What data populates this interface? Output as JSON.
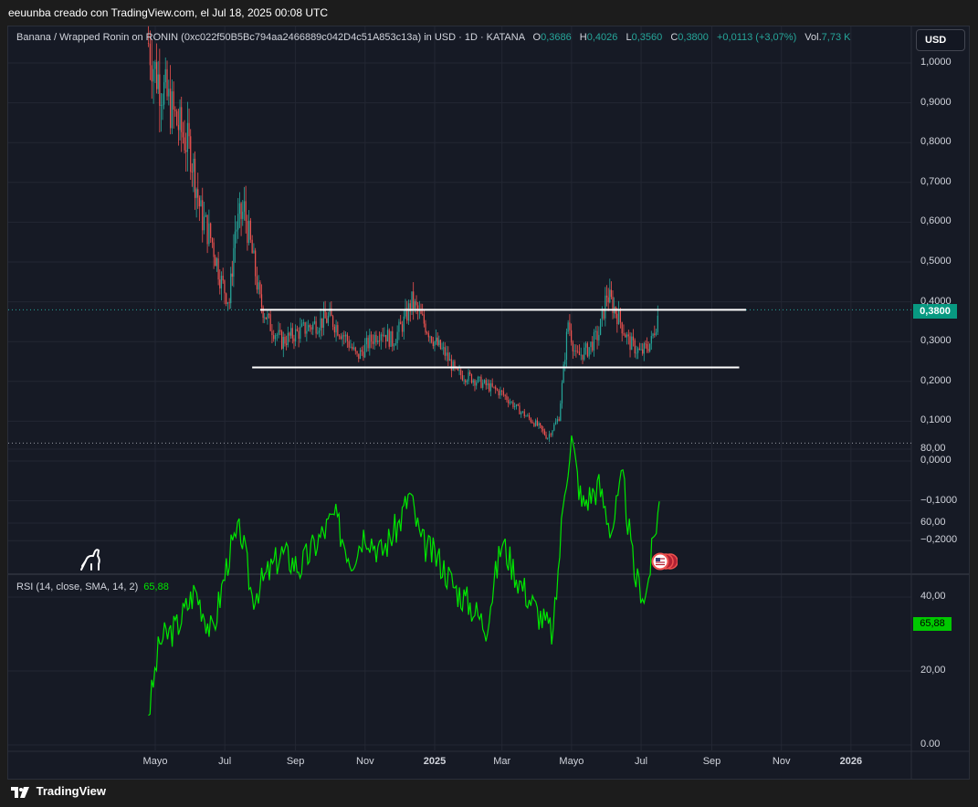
{
  "header": {
    "author_line": "eeuunba creado con TradingView.com, el Jul 18, 2025 00:08 UTC"
  },
  "legend": {
    "symbol": "Banana / Wrapped Ronin on RONIN (0xc022f50B5Bc794aa2466889c042D4c51A853c13a) in USD · 1D · KATANA",
    "o_label": "O",
    "o": "0,3686",
    "h_label": "H",
    "h": "0,4026",
    "l_label": "L",
    "l": "0,3560",
    "c_label": "C",
    "c": "0,3800",
    "change": "+0,0113 (+3,07%)",
    "vol_label": "Vol.",
    "vol": "7,73 K"
  },
  "currency_button": "USD",
  "price_axis": {
    "labels": [
      "1,0000",
      "0,9000",
      "0,8000",
      "0,7000",
      "0,6000",
      "0,5000",
      "0,4000",
      "0,3000",
      "0,2000",
      "0,1000",
      "0,0000",
      "−0,1000",
      "−0,2000"
    ],
    "values": [
      1.0,
      0.9,
      0.8,
      0.7,
      0.6,
      0.5,
      0.4,
      0.3,
      0.2,
      0.1,
      0.0,
      -0.1,
      -0.2
    ],
    "last_price_label": "0,3800"
  },
  "rsi": {
    "title": "RSI (14, close, SMA, 14, 2)",
    "value": "65,88",
    "axis_labels": [
      "80,00",
      "60,00",
      "40,00",
      "20,00",
      "0.00"
    ],
    "axis_values": [
      80,
      60,
      40,
      20,
      0
    ]
  },
  "time_axis": {
    "labels": [
      "Mayo",
      "Jul",
      "Sep",
      "Nov",
      "2025",
      "Mar",
      "Mayo",
      "Jul",
      "Sep",
      "Nov",
      "2026"
    ],
    "bold": [
      false,
      false,
      false,
      false,
      true,
      false,
      false,
      false,
      false,
      false,
      true
    ]
  },
  "footer": {
    "brand": "TradingView"
  },
  "colors": {
    "up": "#26a69a",
    "down": "#ef5350",
    "rsi": "#00e600",
    "levels": "#ffffff",
    "background": "#161a25"
  },
  "chart_data": {
    "type": "line",
    "title": "Banana / Wrapped Ronin on RONIN in USD · 1D · KATANA",
    "price_series": {
      "name": "Banana / Wrapped Ronin",
      "x": [
        "2024-04-25",
        "2024-05-01",
        "2024-05-10",
        "2024-05-20",
        "2024-06-01",
        "2024-06-10",
        "2024-06-20",
        "2024-06-28",
        "2024-07-05",
        "2024-07-10",
        "2024-07-18",
        "2024-07-25",
        "2024-08-01",
        "2024-08-10",
        "2024-08-20",
        "2024-09-01",
        "2024-09-15",
        "2024-10-01",
        "2024-10-15",
        "2024-10-25",
        "2024-11-05",
        "2024-11-15",
        "2024-11-25",
        "2024-12-05",
        "2024-12-12",
        "2024-12-20",
        "2025-01-01",
        "2025-01-10",
        "2025-01-20",
        "2025-02-01",
        "2025-02-15",
        "2025-03-01",
        "2025-03-15",
        "2025-04-01",
        "2025-04-10",
        "2025-04-20",
        "2025-04-28",
        "2025-05-05",
        "2025-05-15",
        "2025-05-25",
        "2025-06-01",
        "2025-06-10",
        "2025-06-20",
        "2025-07-01",
        "2025-07-10",
        "2025-07-17"
      ],
      "y": [
        1.05,
        0.98,
        0.92,
        0.85,
        0.78,
        0.62,
        0.55,
        0.45,
        0.4,
        0.58,
        0.63,
        0.52,
        0.4,
        0.34,
        0.3,
        0.32,
        0.34,
        0.36,
        0.31,
        0.26,
        0.3,
        0.33,
        0.3,
        0.35,
        0.4,
        0.36,
        0.3,
        0.27,
        0.22,
        0.21,
        0.19,
        0.17,
        0.13,
        0.09,
        0.06,
        0.11,
        0.35,
        0.26,
        0.28,
        0.32,
        0.42,
        0.37,
        0.3,
        0.27,
        0.3,
        0.38
      ]
    },
    "rsi_series": {
      "name": "RSI (14, close, SMA, 14, 2)",
      "x": [
        "2024-04-25",
        "2024-05-05",
        "2024-05-20",
        "2024-06-05",
        "2024-06-20",
        "2024-07-05",
        "2024-07-15",
        "2024-07-25",
        "2024-08-05",
        "2024-08-20",
        "2024-09-05",
        "2024-09-20",
        "2024-10-05",
        "2024-10-20",
        "2024-11-01",
        "2024-11-15",
        "2024-12-01",
        "2024-12-10",
        "2024-12-20",
        "2025-01-05",
        "2025-01-20",
        "2025-02-01",
        "2025-02-15",
        "2025-03-01",
        "2025-03-15",
        "2025-04-01",
        "2025-04-15",
        "2025-04-25",
        "2025-05-01",
        "2025-05-10",
        "2025-05-25",
        "2025-06-05",
        "2025-06-15",
        "2025-06-25",
        "2025-07-05",
        "2025-07-17"
      ],
      "y": [
        8,
        28,
        32,
        42,
        30,
        52,
        58,
        40,
        45,
        52,
        48,
        55,
        62,
        50,
        58,
        52,
        60,
        68,
        55,
        50,
        42,
        38,
        32,
        55,
        45,
        36,
        30,
        70,
        83,
        65,
        70,
        58,
        72,
        46,
        40,
        65.88
      ]
    },
    "horizontal_levels": [
      {
        "y": 0.38,
        "x_start": "2024-08-01",
        "x_end": "2025-10-01"
      },
      {
        "y": 0.235,
        "x_start": "2024-07-25",
        "x_end": "2025-09-25"
      }
    ],
    "dotted_levels": [
      0.38,
      0.045
    ],
    "ylim": [
      -0.25,
      1.1
    ],
    "rsi_ylim": [
      0,
      90
    ],
    "xlabel": "",
    "ylabel": "",
    "grid": true
  }
}
